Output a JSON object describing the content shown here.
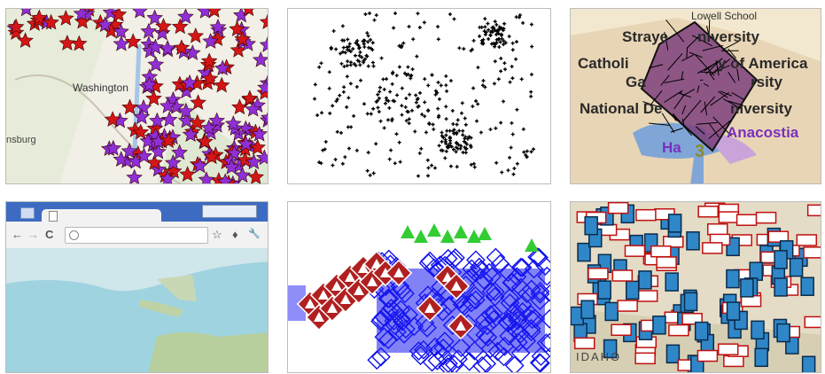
{
  "tiles": {
    "washington_map": {
      "labels": {
        "washington": "Washington",
        "city_left": "nsburg"
      }
    },
    "dc_map": {
      "labels": {
        "lowell": "Lowell School",
        "strayer": "Straye",
        "strayer_tail": "niversity",
        "catholic": "Catholi",
        "catholic_tail": "y of America",
        "gallaudet": "Ga",
        "gallaudet_tail": "rsity",
        "national": "National De",
        "national_tail": "niversity",
        "anacostia": "Anacostia",
        "ha": "Ha",
        "three": "3"
      }
    },
    "browser": {
      "star": "☆",
      "wrench": "🔧"
    },
    "fire_map": {
      "labels": {
        "idaho": "IDAHO"
      }
    }
  }
}
